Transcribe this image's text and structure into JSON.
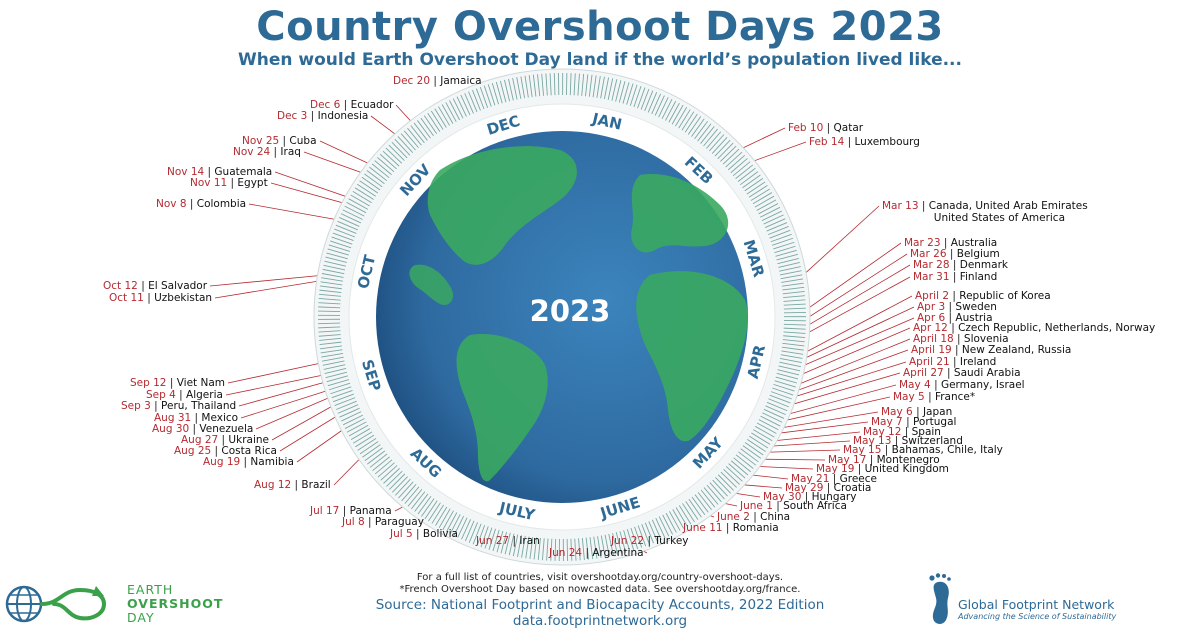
{
  "header": {
    "title": "Country Overshoot Days 2023",
    "subtitle": "When would Earth Overshoot Day land if the world’s population lived like..."
  },
  "center_year": "2023",
  "months": [
    "JAN",
    "FEB",
    "MAR",
    "APR",
    "MAY",
    "JUNE",
    "JULY",
    "AUG",
    "SEP",
    "OCT",
    "NOV",
    "DEC"
  ],
  "separator": "|",
  "entries": [
    {
      "date": "Dec 20",
      "countries": [
        "Jamaica"
      ]
    },
    {
      "date": "Dec 6",
      "countries": [
        "Ecuador"
      ]
    },
    {
      "date": "Dec 3",
      "countries": [
        "Indonesia"
      ]
    },
    {
      "date": "Nov 25",
      "countries": [
        "Cuba"
      ]
    },
    {
      "date": "Nov 24",
      "countries": [
        "Iraq"
      ]
    },
    {
      "date": "Nov 14",
      "countries": [
        "Guatemala"
      ]
    },
    {
      "date": "Nov 11",
      "countries": [
        "Egypt"
      ]
    },
    {
      "date": "Nov 8",
      "countries": [
        "Colombia"
      ]
    },
    {
      "date": "Oct 12",
      "countries": [
        "El Salvador"
      ]
    },
    {
      "date": "Oct 11",
      "countries": [
        "Uzbekistan"
      ]
    },
    {
      "date": "Sep 12",
      "countries": [
        "Viet Nam"
      ]
    },
    {
      "date": "Sep 4",
      "countries": [
        "Algeria"
      ]
    },
    {
      "date": "Sep 3",
      "countries": [
        "Peru, Thailand"
      ]
    },
    {
      "date": "Aug 31",
      "countries": [
        "Mexico"
      ]
    },
    {
      "date": "Aug 30",
      "countries": [
        "Venezuela"
      ]
    },
    {
      "date": "Aug 27",
      "countries": [
        "Ukraine"
      ]
    },
    {
      "date": "Aug 25",
      "countries": [
        "Costa Rica"
      ]
    },
    {
      "date": "Aug 19",
      "countries": [
        "Namibia"
      ]
    },
    {
      "date": "Aug 12",
      "countries": [
        "Brazil"
      ]
    },
    {
      "date": "Jul 17",
      "countries": [
        "Panama"
      ]
    },
    {
      "date": "Jul 8",
      "countries": [
        "Paraguay"
      ]
    },
    {
      "date": "Jul 5",
      "countries": [
        "Bolivia"
      ]
    },
    {
      "date": "Jun 27",
      "countries": [
        "Iran"
      ]
    },
    {
      "date": "Jun 24",
      "countries": [
        "Argentina"
      ]
    },
    {
      "date": "Jun 22",
      "countries": [
        "Turkey"
      ]
    },
    {
      "date": "June 11",
      "countries": [
        "Romania"
      ]
    },
    {
      "date": "June 2",
      "countries": [
        "China"
      ]
    },
    {
      "date": "June 1",
      "countries": [
        "South Africa"
      ]
    },
    {
      "date": "May 30",
      "countries": [
        "Hungary"
      ]
    },
    {
      "date": "May 29",
      "countries": [
        "Croatia"
      ]
    },
    {
      "date": "May 21",
      "countries": [
        "Greece"
      ]
    },
    {
      "date": "May 19",
      "countries": [
        "United Kingdom"
      ]
    },
    {
      "date": "May 17",
      "countries": [
        "Montenegro"
      ]
    },
    {
      "date": "May 15",
      "countries": [
        "Bahamas, Chile, Italy"
      ]
    },
    {
      "date": "May 13",
      "countries": [
        "Switzerland"
      ]
    },
    {
      "date": "May 12",
      "countries": [
        "Spain"
      ]
    },
    {
      "date": "May 7",
      "countries": [
        "Portugal"
      ]
    },
    {
      "date": "May 6",
      "countries": [
        "Japan"
      ]
    },
    {
      "date": "May 5",
      "countries": [
        "France*"
      ]
    },
    {
      "date": "May 4",
      "countries": [
        "Germany, Israel"
      ]
    },
    {
      "date": "April 27",
      "countries": [
        "Saudi Arabia"
      ]
    },
    {
      "date": "April 21",
      "countries": [
        "Ireland"
      ]
    },
    {
      "date": "April 19",
      "countries": [
        "New Zealand, Russia"
      ]
    },
    {
      "date": "April 18",
      "countries": [
        "Slovenia"
      ]
    },
    {
      "date": "Apr 12",
      "countries": [
        "Czech Republic, Netherlands, Norway"
      ]
    },
    {
      "date": "Apr 6",
      "countries": [
        "Austria"
      ]
    },
    {
      "date": "Apr 3",
      "countries": [
        "Sweden"
      ]
    },
    {
      "date": "April 2",
      "countries": [
        "Republic of Korea"
      ]
    },
    {
      "date": "Mar 31",
      "countries": [
        "Finland"
      ]
    },
    {
      "date": "Mar 28",
      "countries": [
        "Denmark"
      ]
    },
    {
      "date": "Mar 26",
      "countries": [
        "Belgium"
      ]
    },
    {
      "date": "Mar 23",
      "countries": [
        "Australia"
      ]
    },
    {
      "date": "Mar 13",
      "countries": [
        "Canada, United Arab Emirates",
        "United States of America"
      ]
    },
    {
      "date": "Feb 14",
      "countries": [
        "Luxembourg"
      ]
    },
    {
      "date": "Feb 10",
      "countries": [
        "Qatar"
      ]
    }
  ],
  "footer": {
    "note1": "For a full list of countries, visit overshootday.org/country-overshoot-days.",
    "note2": "*French Overshoot Day based on nowcasted data. See overshootday.org/france.",
    "source": "Source: National Footprint and Biocapacity Accounts, 2022 Edition",
    "url": "data.footprintnetwork.org"
  },
  "logos": {
    "eod": {
      "line1": "EARTH",
      "line2": "OVERSHOOT",
      "line3": "DAY"
    },
    "gfn": {
      "name": "Global Footprint Network",
      "tagline": "Advancing the Science of Sustainability"
    }
  },
  "colors": {
    "title": "#2e6a96",
    "date": "#b42a30",
    "ring": "#2e7d8f",
    "ocean": "#2f6fa6",
    "land": "#3aa860",
    "eod_green": "#3aa14a"
  }
}
